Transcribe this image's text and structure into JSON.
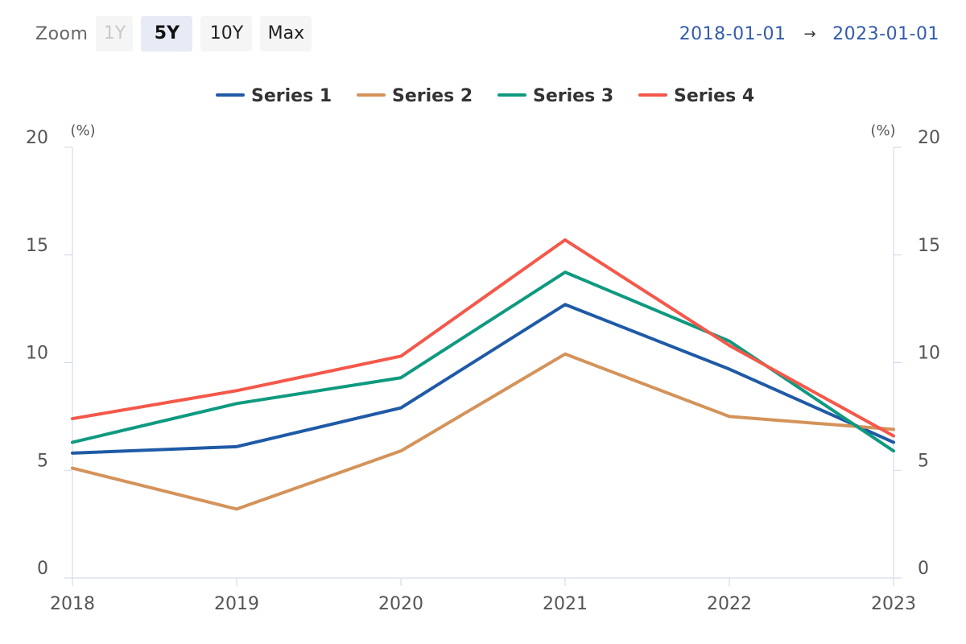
{
  "zoom": {
    "label": "Zoom",
    "buttons": [
      {
        "label": "1Y",
        "state": "disabled"
      },
      {
        "label": "5Y",
        "state": "active"
      },
      {
        "label": "10Y",
        "state": "normal"
      },
      {
        "label": "Max",
        "state": "normal"
      }
    ]
  },
  "range": {
    "from": "2018-01-01",
    "arrow": "→",
    "to": "2023-01-01"
  },
  "chart_data": {
    "type": "line",
    "x": [
      "2018",
      "2019",
      "2020",
      "2021",
      "2022",
      "2023"
    ],
    "ylim": [
      0,
      20
    ],
    "y_ticks": [
      "0",
      "5",
      "10",
      "15",
      "20"
    ],
    "y_unit_left": "(%)",
    "y_unit_right": "(%)",
    "grid": false,
    "legend_position": "top-center",
    "series": [
      {
        "name": "Series 1",
        "color": "#1f5aa6",
        "values": [
          5.8,
          6.1,
          7.9,
          12.7,
          9.7,
          6.3
        ]
      },
      {
        "name": "Series 2",
        "color": "#d4935a",
        "values": [
          5.1,
          3.2,
          5.9,
          10.4,
          7.5,
          6.9
        ]
      },
      {
        "name": "Series 3",
        "color": "#0f9a80",
        "values": [
          6.3,
          8.1,
          9.3,
          14.2,
          11.0,
          5.9
        ]
      },
      {
        "name": "Series 4",
        "color": "#f4584a",
        "values": [
          7.4,
          8.7,
          10.3,
          15.7,
          10.8,
          6.6
        ]
      }
    ]
  }
}
